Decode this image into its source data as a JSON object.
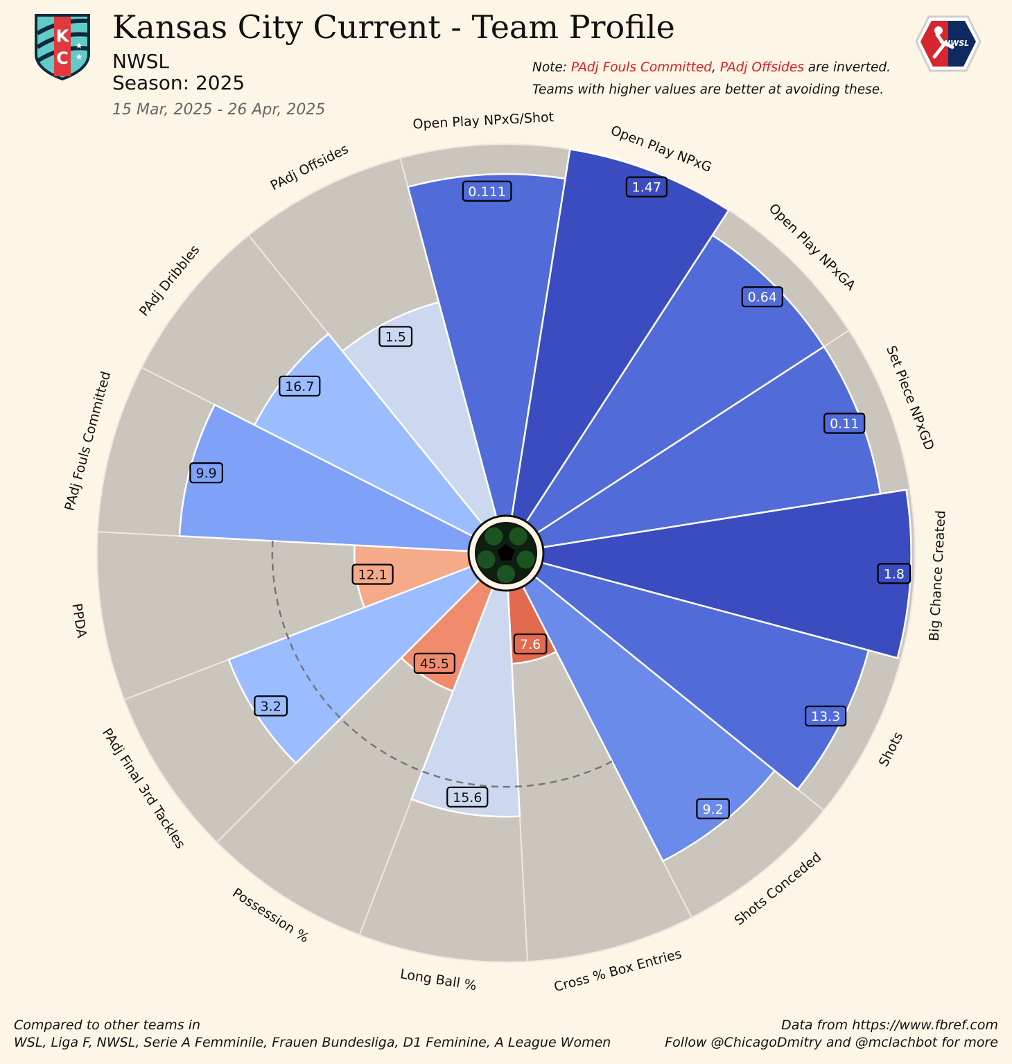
{
  "header": {
    "title": "Kansas City Current - Team Profile",
    "league": "NWSL",
    "season": "Season: 2025",
    "date_range": "15 Mar, 2025 - 26 Apr, 2025"
  },
  "note": {
    "prefix": "Note: ",
    "item1": "PAdj Fouls Committed",
    "sep": ", ",
    "item2": "PAdj Offsides",
    "suffix": " are inverted.",
    "line2": "Teams with higher values are better at avoiding these."
  },
  "footer": {
    "left_line1": "Compared to other teams in",
    "left_line2": "WSL, Liga F, NWSL, Serie A Femminile, Frauen Bundesliga, D1 Feminine, A League Women",
    "right_line1": "Data from https://www.fbref.com",
    "right_line2": "Follow @ChicagoDmitry and @mclachbot for more"
  },
  "logos": {
    "team_letters": [
      "K",
      "C"
    ],
    "league_text": "NWSL"
  },
  "colors": {
    "background": "#fdf5e6",
    "slice_background": "#cbc6bd",
    "note_red": "#e0191e"
  },
  "chart_data": {
    "type": "radar",
    "subtype": "pizza",
    "scale": "percentile",
    "range": [
      0,
      100
    ],
    "slices": [
      {
        "name": "Open Play NPxG/Shot",
        "value_label": "0.111",
        "percentile": 92,
        "color": "#516bd9"
      },
      {
        "name": "Open Play NPxG",
        "value_label": "1.47",
        "percentile": 100,
        "color": "#3a4cc0"
      },
      {
        "name": "Open Play NPxGA",
        "value_label": "0.64",
        "percentile": 92,
        "color": "#516bd9"
      },
      {
        "name": "Set Piece NPxGD",
        "value_label": "0.11",
        "percentile": 92,
        "color": "#516bd9"
      },
      {
        "name": "Big Chance Created",
        "value_label": "1.8",
        "percentile": 99,
        "color": "#3a4cc0"
      },
      {
        "name": "Shots",
        "value_label": "13.3",
        "percentile": 91,
        "color": "#516bd9"
      },
      {
        "name": "Shots Conceded",
        "value_label": "9.2",
        "percentile": 83,
        "color": "#6a8be9"
      },
      {
        "name": "Cross % Box Entries",
        "value_label": "7.6",
        "percentile": 20,
        "color": "#e26a4e"
      },
      {
        "name": "Long Ball %",
        "value_label": "15.6",
        "percentile": 61,
        "color": "#cbd8ef"
      },
      {
        "name": "Possession %",
        "value_label": "45.5",
        "percentile": 30,
        "color": "#f08c6d"
      },
      {
        "name": "PAdj Final 3rd Tackles",
        "value_label": "3.2",
        "percentile": 70,
        "color": "#9bbcff"
      },
      {
        "name": "PPDA",
        "value_label": "12.1",
        "percentile": 31,
        "color": "#f5aa89"
      },
      {
        "name": "PAdj Fouls Committed",
        "value_label": "9.9",
        "percentile": 78,
        "color": "#7fa1f7"
      },
      {
        "name": "PAdj Dribbles",
        "value_label": "16.7",
        "percentile": 66,
        "color": "#9bbcff"
      },
      {
        "name": "PAdj Offsides",
        "value_label": "1.5",
        "percentile": 60,
        "color": "#cbd8ef"
      }
    ],
    "reference_arcs": [
      {
        "slices": [
          "Cross % Box Entries",
          "Long Ball %",
          "Possession %",
          "PAdj Final 3rd Tackles",
          "PPDA"
        ],
        "percentile": 53,
        "style": "dashed"
      }
    ]
  }
}
